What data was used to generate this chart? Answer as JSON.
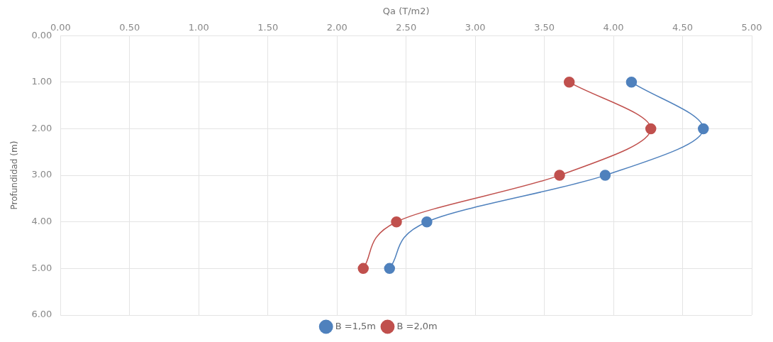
{
  "chart_data": {
    "type": "line",
    "xlabel": "Qa (T/m2)",
    "ylabel": "Profundidad (m)",
    "xlim": [
      0,
      5
    ],
    "xticks": [
      {
        "value": 0,
        "label": "0.00"
      },
      {
        "value": 0.5,
        "label": "0.50"
      },
      {
        "value": 1,
        "label": "1.00"
      },
      {
        "value": 1.5,
        "label": "1.50"
      },
      {
        "value": 2,
        "label": "2.00"
      },
      {
        "value": 2.5,
        "label": "2.50"
      },
      {
        "value": 3,
        "label": "3.00"
      },
      {
        "value": 3.5,
        "label": "3.50"
      },
      {
        "value": 4,
        "label": "4.00"
      },
      {
        "value": 4.5,
        "label": "4.50"
      },
      {
        "value": 5,
        "label": "5.00"
      }
    ],
    "ylim": [
      6,
      0
    ],
    "yticks": [
      {
        "value": 0,
        "label": "0.00"
      },
      {
        "value": 1,
        "label": "1.00"
      },
      {
        "value": 2,
        "label": "2.00"
      },
      {
        "value": 3,
        "label": "3.00"
      },
      {
        "value": 4,
        "label": "4.00"
      },
      {
        "value": 5,
        "label": "5.00"
      },
      {
        "value": 6,
        "label": "6.00"
      }
    ],
    "series": [
      {
        "name": "B =1,5m",
        "color": "#4f81bd",
        "x": [
          4.13,
          4.65,
          3.94,
          2.65,
          2.38
        ],
        "values": [
          1,
          2,
          3,
          4,
          5
        ]
      },
      {
        "name": "B =2,0m",
        "color": "#c0504d",
        "x": [
          3.68,
          4.27,
          3.61,
          2.43,
          2.19
        ],
        "values": [
          1,
          2,
          3,
          4,
          5
        ]
      }
    ],
    "grid": true,
    "legend": "bottom",
    "marker": "circle",
    "line_style": "solid"
  }
}
